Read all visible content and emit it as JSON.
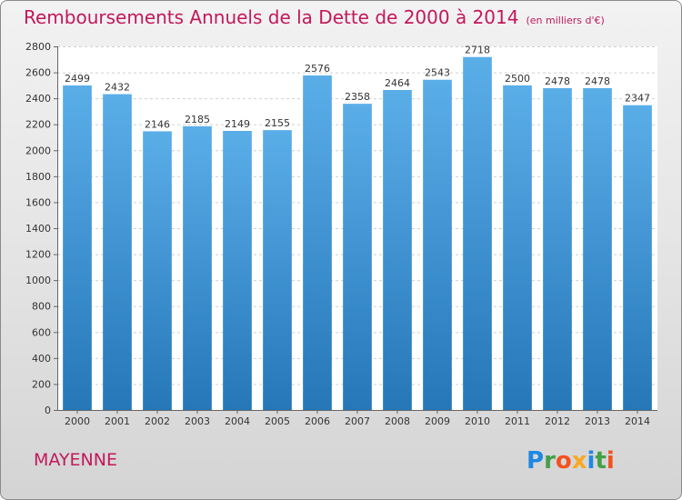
{
  "title": "Remboursements Annuels de la Dette de 2000 à 2014",
  "unit_note": "(en milliers d'€)",
  "place": "MAYENNE",
  "brand": {
    "letters": [
      "P",
      "r",
      "o",
      "x",
      "i",
      "t",
      "i"
    ],
    "colors": [
      "#1e88e5",
      "#43a047",
      "#f4511e",
      "#f9a825",
      "#1e88e5",
      "#43a047",
      "#f4511e"
    ]
  },
  "colors": {
    "bar_top": "#5aaee8",
    "bar_bottom": "#2577b8",
    "title": "#c2185b"
  },
  "chart_data": {
    "type": "bar",
    "categories": [
      "2000",
      "2001",
      "2002",
      "2003",
      "2004",
      "2005",
      "2006",
      "2007",
      "2008",
      "2009",
      "2010",
      "2011",
      "2012",
      "2013",
      "2014"
    ],
    "values": [
      2499,
      2432,
      2146,
      2185,
      2149,
      2155,
      2576,
      2358,
      2464,
      2543,
      2718,
      2500,
      2478,
      2478,
      2347
    ],
    "ylim": [
      0,
      2800
    ],
    "yticks": [
      0,
      200,
      400,
      600,
      800,
      1000,
      1200,
      1400,
      1600,
      1800,
      2000,
      2200,
      2400,
      2600,
      2800
    ],
    "grid": true,
    "data_labels": true
  }
}
